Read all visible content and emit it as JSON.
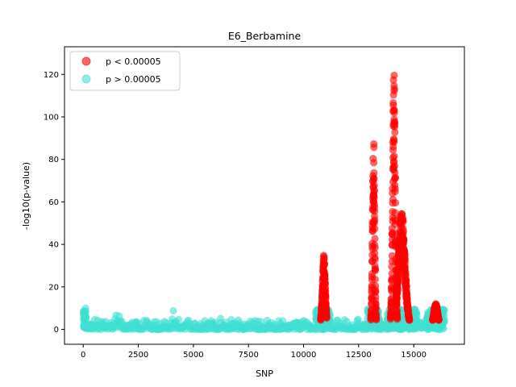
{
  "chart_data": {
    "type": "scatter",
    "title": "E6_Berbamine",
    "xlabel": "SNP",
    "ylabel": "-log10(p-value)",
    "xlim": [
      -850,
      17300
    ],
    "ylim": [
      -7,
      133
    ],
    "xticks": [
      0,
      2500,
      5000,
      7500,
      10000,
      12500,
      15000
    ],
    "yticks": [
      0,
      20,
      40,
      60,
      80,
      100,
      120
    ],
    "legend_position": "upper-left",
    "series": [
      {
        "name": "p < 0.00005",
        "color": "#ff0000",
        "peaks": [
          {
            "x": [
              10700,
              11050
            ],
            "center": 10920,
            "max": 35
          },
          {
            "x": [
              13050,
              13300
            ],
            "center": 13180,
            "max": 92
          },
          {
            "x": [
              13950,
              14250
            ],
            "center": 14100,
            "max": 127
          },
          {
            "x": [
              14200,
              15000
            ],
            "center": 14450,
            "max": 56
          },
          {
            "x": [
              15750,
              16250
            ],
            "center": 16000,
            "max": 12
          }
        ],
        "min_value": 4.3
      },
      {
        "name": "p > 0.00005",
        "color": "#40e0d0",
        "x_range": [
          0,
          16400
        ],
        "typical_range": [
          0,
          5
        ],
        "max_value": 10
      }
    ]
  }
}
